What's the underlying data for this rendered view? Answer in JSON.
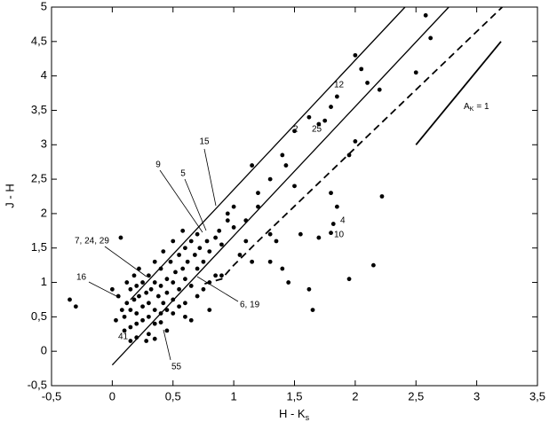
{
  "chart_data": {
    "type": "scatter",
    "xlabel": "H - K",
    "xlabel_sub": "s",
    "ylabel": "J - H",
    "xlim": [
      -0.5,
      3.5
    ],
    "ylim": [
      -0.5,
      5
    ],
    "xticks": [
      {
        "value": -0.5,
        "label": "-0,5"
      },
      0,
      {
        "value": 0.5,
        "label": "0,5"
      },
      1,
      {
        "value": 1.5,
        "label": "1,5"
      },
      2,
      {
        "value": 2.5,
        "label": "2,5"
      },
      3,
      {
        "value": 3.5,
        "label": "3,5"
      }
    ],
    "yticks": [
      {
        "value": -0.5,
        "label": "-0,5"
      },
      0,
      {
        "value": 0.5,
        "label": "0,5"
      },
      1,
      {
        "value": 1.5,
        "label": "1,5"
      },
      2,
      {
        "value": 2.5,
        "label": "2,5"
      },
      3,
      {
        "value": 3.5,
        "label": "3,5"
      },
      4,
      {
        "value": 4.5,
        "label": "4,5"
      },
      5
    ],
    "color": "#000000",
    "x": [
      2.58,
      2.62,
      2.0,
      2.05,
      2.1,
      2.2,
      2.5,
      1.85,
      1.8,
      1.75,
      1.7,
      1.5,
      1.62,
      2.0,
      1.95,
      1.4,
      1.43,
      1.15,
      1.2,
      1.3,
      1.5,
      1.8,
      2.22,
      1.85,
      1.2,
      1.1,
      1.0,
      0.95,
      1.82,
      1.8,
      1.7,
      1.55,
      1.35,
      1.3,
      1.1,
      1.05,
      1.15,
      1.3,
      1.4,
      1.45,
      1.62,
      1.65,
      1.95,
      2.15,
      0.9,
      0.8,
      -0.35,
      -0.3,
      0.07,
      0.35,
      0.1,
      0.12,
      0.15,
      0.15,
      0.18,
      0.2,
      0.2,
      0.22,
      0.25,
      0.25,
      0.28,
      0.3,
      0.3,
      0.32,
      0.35,
      0.35,
      0.38,
      0.4,
      0.4,
      0.42,
      0.45,
      0.45,
      0.48,
      0.5,
      0.5,
      0.52,
      0.55,
      0.55,
      0.58,
      0.6,
      0.6,
      0.62,
      0.65,
      0.65,
      0.68,
      0.7,
      0.7,
      0.72,
      0.75,
      0.78,
      0.8,
      0.85,
      0.88,
      0.9,
      0.05,
      0.08,
      0.0,
      0.03,
      0.1,
      0.15,
      0.2,
      0.25,
      0.3,
      0.35,
      0.4,
      0.45,
      0.5,
      0.55,
      0.6,
      0.7,
      0.75,
      0.8,
      0.85,
      0.3,
      0.28,
      0.45,
      0.22,
      0.18,
      0.12,
      0.35,
      0.42,
      0.5,
      0.58,
      0.95,
      1.0,
      0.4,
      0.2,
      0.15,
      0.6,
      0.65
    ],
    "values": [
      4.88,
      4.55,
      4.3,
      4.1,
      3.9,
      3.8,
      4.05,
      3.7,
      3.55,
      3.35,
      3.3,
      3.2,
      3.4,
      3.05,
      2.85,
      2.85,
      2.7,
      2.7,
      2.3,
      2.5,
      2.4,
      2.3,
      2.25,
      2.1,
      2.1,
      1.9,
      2.1,
      2.0,
      1.85,
      1.72,
      1.65,
      1.7,
      1.6,
      1.7,
      1.6,
      1.4,
      1.3,
      1.3,
      1.2,
      1.0,
      0.9,
      0.6,
      1.05,
      1.25,
      1.1,
      0.6,
      0.75,
      0.65,
      1.65,
      0.18,
      0.5,
      0.7,
      0.9,
      0.6,
      0.75,
      0.55,
      0.95,
      0.8,
      0.65,
      1.0,
      0.85,
      0.7,
      1.1,
      0.9,
      0.6,
      1.0,
      0.8,
      1.2,
      0.95,
      0.7,
      1.05,
      0.85,
      1.3,
      1.0,
      0.75,
      1.15,
      1.4,
      0.9,
      1.2,
      1.05,
      1.5,
      1.3,
      0.95,
      1.6,
      1.4,
      1.2,
      1.7,
      1.5,
      1.3,
      1.6,
      1.45,
      1.65,
      1.75,
      1.55,
      0.8,
      0.6,
      0.9,
      0.45,
      0.3,
      0.35,
      0.4,
      0.45,
      0.5,
      0.4,
      0.55,
      0.6,
      0.55,
      0.65,
      0.7,
      0.8,
      0.9,
      1.0,
      1.1,
      0.25,
      0.15,
      0.3,
      1.2,
      1.1,
      1.0,
      1.3,
      1.45,
      1.6,
      1.75,
      1.9,
      1.8,
      0.42,
      0.2,
      0.15,
      0.5,
      0.45
    ],
    "lines": [
      {
        "x": [
          0.15,
          2.41
        ],
        "y": [
          0.75,
          5
        ],
        "dashed": false
      },
      {
        "x": [
          0,
          2.77
        ],
        "y": [
          -0.2,
          5
        ],
        "dashed": false
      },
      {
        "x": [
          0.76,
          0.9,
          1.0,
          1.2,
          3.21
        ],
        "y": [
          0.98,
          1.05,
          1.25,
          1.6,
          5
        ],
        "dashed": true
      }
    ],
    "vector": {
      "label": "A",
      "label_sub": "K",
      "label_rest": "= 1",
      "x": [
        2.5,
        3.2
      ],
      "y": [
        3.0,
        4.5
      ]
    },
    "annotations": [
      "12",
      "2",
      "25",
      "15",
      "9",
      "5",
      "7, 24, 29",
      "16",
      "6, 19",
      "41",
      "55",
      "4",
      "10"
    ]
  }
}
